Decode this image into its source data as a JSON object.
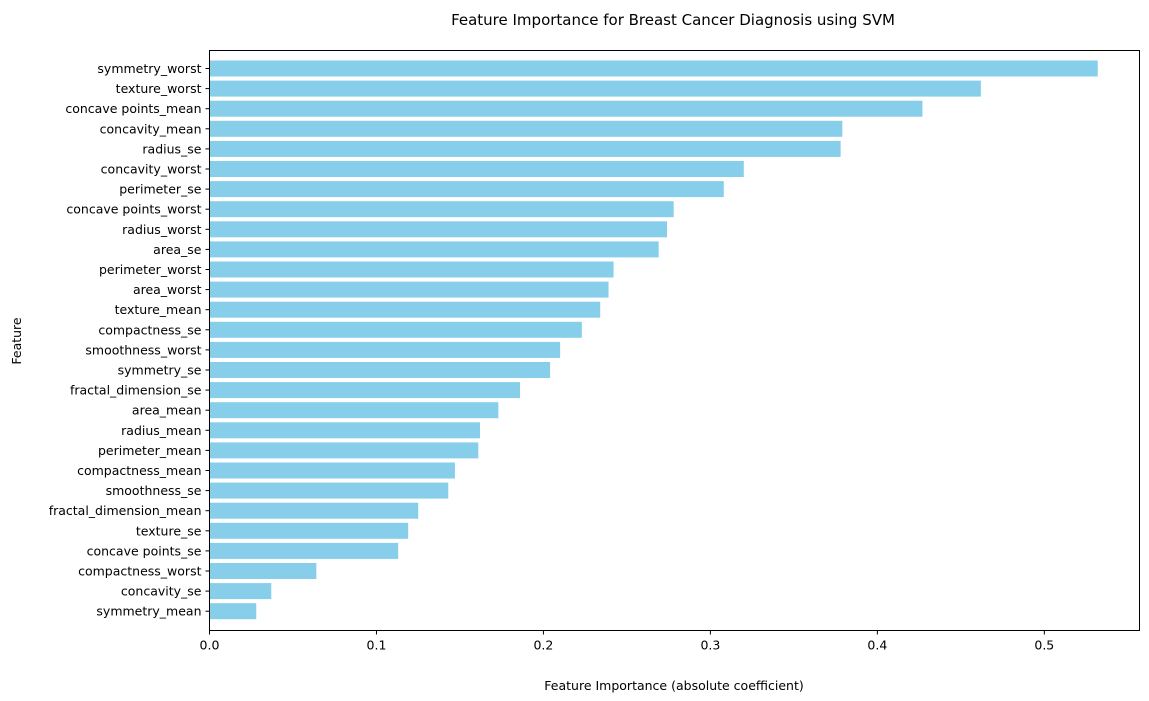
{
  "chart_data": {
    "type": "bar",
    "orientation": "horizontal",
    "title": "Feature Importance for Breast Cancer Diagnosis using SVM",
    "xlabel": "Feature Importance (absolute coefficient)",
    "ylabel": "Feature",
    "xlim": [
      0,
      0.557
    ],
    "xticks": [
      "0.0",
      "0.1",
      "0.2",
      "0.3",
      "0.4",
      "0.5"
    ],
    "grid": false,
    "bar_color": "#87CEEB",
    "categories": [
      "symmetry_worst",
      "texture_worst",
      "concave points_mean",
      "concavity_mean",
      "radius_se",
      "concavity_worst",
      "perimeter_se",
      "concave points_worst",
      "radius_worst",
      "area_se",
      "perimeter_worst",
      "area_worst",
      "texture_mean",
      "compactness_se",
      "smoothness_worst",
      "symmetry_se",
      "fractal_dimension_se",
      "area_mean",
      "radius_mean",
      "perimeter_mean",
      "compactness_mean",
      "smoothness_se",
      "fractal_dimension_mean",
      "texture_se",
      "concave points_se",
      "compactness_worst",
      "concavity_se",
      "symmetry_mean"
    ],
    "values": [
      0.532,
      0.462,
      0.427,
      0.379,
      0.378,
      0.32,
      0.308,
      0.278,
      0.274,
      0.269,
      0.242,
      0.239,
      0.234,
      0.223,
      0.21,
      0.204,
      0.186,
      0.173,
      0.162,
      0.161,
      0.147,
      0.143,
      0.125,
      0.119,
      0.113,
      0.064,
      0.037,
      0.028
    ]
  }
}
